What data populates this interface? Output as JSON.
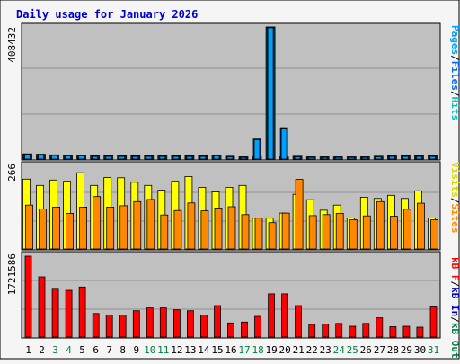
{
  "title": "Daily usage for January 2026",
  "colors": {
    "frame_bg": "#f5f5f5",
    "panel_bg": "#c0c0c0",
    "grid": "#909090",
    "title": "#0000cc",
    "hits": "#00c0c0",
    "files": "#0066ff",
    "pages": "#00a0ff",
    "visits": "#ffff00",
    "sites": "#ff8800",
    "kb": "#ff0000",
    "weekday_label": "#000000",
    "weekend_label": "#008040"
  },
  "panels": {
    "top": {
      "ymax_label": "408432",
      "legend": [
        {
          "text": "Pages",
          "color": "#00a0ff"
        },
        {
          "text": "/",
          "color": "#000000"
        },
        {
          "text": "Files",
          "color": "#0066ff"
        },
        {
          "text": "/",
          "color": "#000000"
        },
        {
          "text": "Hits",
          "color": "#00c0c0"
        }
      ]
    },
    "middle": {
      "ymax_label": "266",
      "legend": [
        {
          "text": "Visits",
          "color": "#d8d800"
        },
        {
          "text": "/",
          "color": "#000000"
        },
        {
          "text": "Sites",
          "color": "#ff8800"
        }
      ]
    },
    "bottom": {
      "ymax_label": "1721586",
      "legend": [
        {
          "text": "kB F",
          "color": "#ff0000"
        },
        {
          "text": "/",
          "color": "#000000"
        },
        {
          "text": "kB In",
          "color": "#0000cc"
        },
        {
          "text": "/",
          "color": "#000000"
        },
        {
          "text": "kB Out",
          "color": "#008040"
        }
      ]
    }
  },
  "chart_data": {
    "type": "bar",
    "title": "Daily usage for January 2026",
    "categories": [
      "1",
      "2",
      "3",
      "4",
      "5",
      "6",
      "7",
      "8",
      "9",
      "10",
      "11",
      "12",
      "13",
      "14",
      "15",
      "16",
      "17",
      "18",
      "19",
      "20",
      "21",
      "22",
      "23",
      "24",
      "25",
      "26",
      "27",
      "28",
      "29",
      "30",
      "31"
    ],
    "weekend_days": [
      "3",
      "4",
      "10",
      "11",
      "17",
      "18",
      "24",
      "25",
      "31"
    ],
    "panels": [
      {
        "name": "top",
        "ymax": 408432,
        "series": [
          {
            "name": "Hits",
            "values": [
              16000,
              15000,
              13000,
              12000,
              12000,
              10000,
              10000,
              10000,
              10000,
              10000,
              10000,
              10000,
              10000,
              10000,
              12000,
              9000,
              7000,
              7000,
              408432,
              7000,
              9000,
              7000,
              7000,
              7000,
              7000,
              7000,
              9000,
              10000,
              10000,
              10000,
              10000
            ]
          },
          {
            "name": "Files",
            "values": [
              15000,
              14000,
              12000,
              11000,
              11000,
              9000,
              9000,
              9000,
              9000,
              9000,
              9000,
              9000,
              9000,
              9000,
              11000,
              8000,
              6000,
              62000,
              408000,
              97000,
              8000,
              6000,
              6000,
              6000,
              6000,
              6000,
              8000,
              9000,
              9000,
              9000,
              9000
            ]
          },
          {
            "name": "Pages",
            "values": [
              14000,
              13000,
              11000,
              10000,
              10000,
              8000,
              8000,
              8000,
              8000,
              8000,
              8000,
              8000,
              8000,
              8000,
              10000,
              7000,
              5000,
              60000,
              406000,
              95000,
              7000,
              5000,
              5000,
              5000,
              5000,
              5000,
              7000,
              8000,
              8000,
              8000,
              8000
            ]
          }
        ]
      },
      {
        "name": "middle",
        "ymax": 266,
        "series": [
          {
            "name": "Visits",
            "values": [
              220,
              200,
              217,
              213,
              240,
              200,
              225,
              224,
              210,
              200,
              185,
              213,
              228,
              194,
              180,
              194,
              200,
              97,
              97,
              113,
              172,
              155,
              122,
              138,
              98,
              163,
              159,
              169,
              159,
              183,
              98
            ]
          },
          {
            "name": "Sites",
            "values": [
              138,
              126,
              132,
              112,
              132,
              165,
              132,
              136,
              149,
              156,
              107,
              121,
              145,
              120,
              129,
              133,
              108,
              97,
              83,
              113,
              219,
              105,
              108,
              112,
              92,
              104,
              149,
              103,
              125,
              144,
              92
            ]
          }
        ]
      },
      {
        "name": "bottom",
        "ymax": 1721586,
        "series": [
          {
            "name": "kB F",
            "values": [
              1721586,
              1282000,
              1036000,
              995000,
              1066000,
              501000,
              470000,
              470000,
              560000,
              620000,
              620000,
              580000,
              560000,
              470000,
              670000,
              300000,
              320000,
              440000,
              920000,
              920000,
              670000,
              270000,
              280000,
              290000,
              230000,
              290000,
              410000,
              220000,
              230000,
              210000,
              640000
            ]
          }
        ]
      }
    ]
  }
}
